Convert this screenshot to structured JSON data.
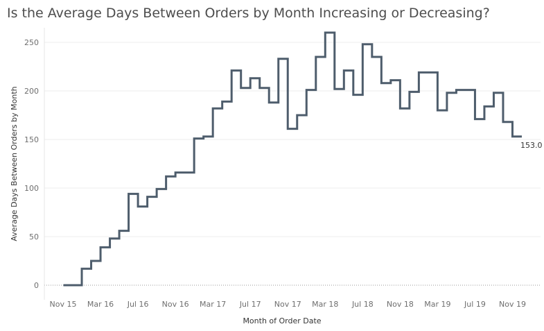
{
  "chart_data": {
    "type": "line",
    "step": true,
    "title": "Is the Average Days Between Orders by Month Increasing or Decreasing?",
    "xlabel": "Month of Order Date",
    "ylabel": "Average Days Between Orders by Month",
    "ylim": [
      -15,
      265
    ],
    "yticks": [
      0,
      50,
      100,
      150,
      200,
      250
    ],
    "xlim": [
      "2015-09",
      "2020-02"
    ],
    "xticks": [
      "Nov 15",
      "Mar 16",
      "Jul 16",
      "Nov 16",
      "Mar 17",
      "Jul 17",
      "Nov 17",
      "Mar 18",
      "Jul 18",
      "Nov 18",
      "Mar 19",
      "Jul 19",
      "Nov 19"
    ],
    "xtick_months": [
      "2015-11",
      "2016-03",
      "2016-07",
      "2016-11",
      "2017-03",
      "2017-07",
      "2017-11",
      "2018-03",
      "2018-07",
      "2018-11",
      "2019-03",
      "2019-07",
      "2019-11"
    ],
    "zero_line": "dotted",
    "grid": "horizontal",
    "line_color": "#4e5d6c",
    "end_label": "153.0",
    "series": [
      {
        "x": [
          "2015-12",
          "2016-01",
          "2016-02",
          "2016-03",
          "2016-04",
          "2016-05",
          "2016-06",
          "2016-07",
          "2016-08",
          "2016-09",
          "2016-10",
          "2016-11",
          "2016-12",
          "2017-01",
          "2017-02",
          "2017-03",
          "2017-04",
          "2017-05",
          "2017-06",
          "2017-07",
          "2017-08",
          "2017-09",
          "2017-10",
          "2017-11",
          "2017-12",
          "2018-01",
          "2018-02",
          "2018-03",
          "2018-04",
          "2018-05",
          "2018-06",
          "2018-07",
          "2018-08",
          "2018-09",
          "2018-10",
          "2018-11",
          "2018-12",
          "2019-01",
          "2019-02",
          "2019-03",
          "2019-04",
          "2019-05",
          "2019-06",
          "2019-07",
          "2019-08",
          "2019-09",
          "2019-10",
          "2019-11",
          "2019-12"
        ],
        "values": [
          0,
          17,
          25,
          39,
          48,
          56,
          94,
          81,
          91,
          99,
          112,
          116,
          116,
          151,
          153,
          182,
          189,
          221,
          203,
          213,
          203,
          188,
          233,
          161,
          175,
          201,
          235,
          260,
          202,
          221,
          196,
          248,
          235,
          208,
          211,
          182,
          199,
          219,
          219,
          180,
          198,
          201,
          201,
          171,
          184,
          198,
          168,
          153,
          153
        ]
      }
    ]
  }
}
